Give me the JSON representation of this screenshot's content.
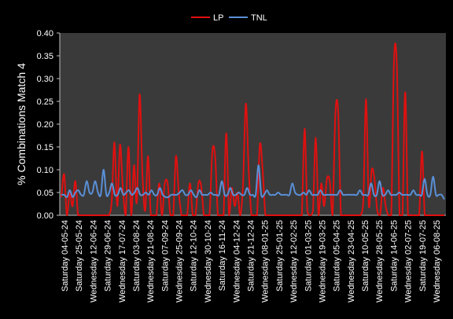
{
  "chart_data": {
    "type": "line",
    "title": "",
    "xlabel": "",
    "ylabel": "% Combinations Match 4",
    "ylim": [
      0,
      0.4
    ],
    "yticks": [
      0.0,
      0.05,
      0.1,
      0.15,
      0.2,
      0.25,
      0.3,
      0.35,
      0.4
    ],
    "ytick_labels": [
      "0.00",
      "0.05",
      "0.10",
      "0.15",
      "0.20",
      "0.25",
      "0.30",
      "0.35",
      "0.40"
    ],
    "grid": false,
    "legend": {
      "position": "top-center",
      "entries": [
        "LP",
        "TNL"
      ]
    },
    "colors": {
      "background": "#000000",
      "plot_area": "#3a3a3a",
      "LP": "#e01010",
      "TNL": "#5a8fd6",
      "text": "#ffffff"
    },
    "x_tick_labels": [
      "Saturday 04-05-24",
      "Saturday 25-05-24",
      "Wednesday 12-06-24",
      "Saturday 29-06-24",
      "Wednesday 17-07-24",
      "Saturday 03-08-24",
      "Wednesday 21-08-24",
      "Saturday 07-09-24",
      "Wednesday 25-09-24",
      "Saturday 12-10-24",
      "Wednesday 30-10-24",
      "Saturday 16-11-24",
      "Wednesday 04-12-24",
      "Saturday 21-12-24",
      "Wednesday 08-01-25",
      "Saturday 25-01-25",
      "Wednesday 12-02-25",
      "Saturday 01-03-25",
      "Wednesday 19-03-25",
      "Saturday 05-04-25",
      "Wednesday 23-04-25",
      "Saturday 10-05-25",
      "Wednesday 28-05-25",
      "Saturday 14-06-25",
      "Wednesday 02-07-25",
      "Saturday 19-07-25",
      "Wednesday 06-08-25"
    ],
    "series": [
      {
        "name": "LP",
        "values": [
          0.04,
          0.09,
          0,
          0.05,
          0.02,
          0.075,
          0,
          0,
          0,
          0,
          0,
          0,
          0,
          0,
          0,
          0,
          0,
          0,
          0.03,
          0.16,
          0.02,
          0.155,
          0.06,
          0,
          0.15,
          0,
          0.11,
          0.03,
          0.265,
          0.09,
          0.01,
          0.13,
          0,
          0,
          0,
          0.07,
          0,
          0.07,
          0.07,
          0,
          0,
          0.13,
          0.05,
          0,
          0,
          0,
          0.07,
          0,
          0,
          0.07,
          0.065,
          0,
          0,
          0,
          0.14,
          0.13,
          0,
          0,
          0,
          0.18,
          0,
          0.06,
          0.02,
          0.05,
          0,
          0.07,
          0.245,
          0.1,
          0,
          0,
          0,
          0.155,
          0.1,
          0,
          0,
          0,
          0,
          0,
          0,
          0,
          0,
          0,
          0,
          0,
          0,
          0,
          0,
          0.19,
          0.01,
          0,
          0.01,
          0.17,
          0,
          0.07,
          0.02,
          0.08,
          0.075,
          0,
          0.22,
          0.23,
          0,
          0,
          0,
          0,
          0,
          0,
          0,
          0,
          0.03,
          0.255,
          0.02,
          0.1,
          0.08,
          0.01,
          0,
          0.06,
          0.02,
          0,
          0,
          0.34,
          0.33,
          0,
          0,
          0.27,
          0,
          0,
          0,
          0,
          0,
          0.14,
          0,
          0,
          0,
          0,
          0,
          0,
          0,
          0
        ],
        "color": "#e01010"
      },
      {
        "name": "TNL",
        "values": [
          0.045,
          0.045,
          0.04,
          0.055,
          0.04,
          0.05,
          0.055,
          0.045,
          0.045,
          0.075,
          0.05,
          0.05,
          0.075,
          0.05,
          0.045,
          0.1,
          0.045,
          0.05,
          0.07,
          0.045,
          0.045,
          0.06,
          0.045,
          0.05,
          0.055,
          0.045,
          0.05,
          0.06,
          0.045,
          0.045,
          0.05,
          0.045,
          0.055,
          0.045,
          0.045,
          0.06,
          0.045,
          0.04,
          0.04,
          0.045,
          0.045,
          0.045,
          0.05,
          0.055,
          0.045,
          0.045,
          0.055,
          0.045,
          0.04,
          0.055,
          0.045,
          0.045,
          0.045,
          0.05,
          0.045,
          0.045,
          0.045,
          0.075,
          0.045,
          0.045,
          0.06,
          0.045,
          0.045,
          0.05,
          0.045,
          0.045,
          0.06,
          0.045,
          0.045,
          0.045,
          0.11,
          0.045,
          0.045,
          0.055,
          0.045,
          0.045,
          0.045,
          0.05,
          0.045,
          0.045,
          0.045,
          0.045,
          0.07,
          0.05,
          0.045,
          0.045,
          0.05,
          0.045,
          0.055,
          0.045,
          0.045,
          0.045,
          0.055,
          0.045,
          0.045,
          0.045,
          0.045,
          0.045,
          0.045,
          0.055,
          0.045,
          0.045,
          0.045,
          0.045,
          0.045,
          0.045,
          0.055,
          0.045,
          0.045,
          0.045,
          0.07,
          0.045,
          0.045,
          0.075,
          0.045,
          0.045,
          0.055,
          0.045,
          0.045,
          0.045,
          0.05,
          0.045,
          0.045,
          0.045,
          0.045,
          0.055,
          0.045,
          0.045,
          0.045,
          0.08,
          0.045,
          0.045,
          0.085,
          0.045,
          0.045,
          0.045,
          0.035
        ],
        "color": "#5a8fd6"
      }
    ]
  }
}
